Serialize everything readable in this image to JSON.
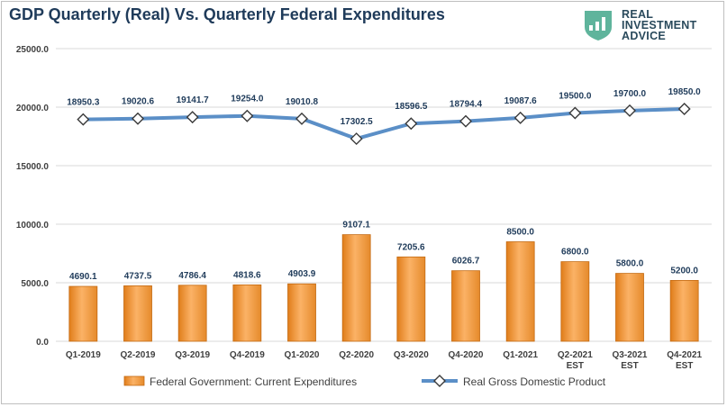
{
  "title": "GDP Quarterly (Real) Vs. Quarterly Federal Expenditures",
  "logo": {
    "line1": "REAL",
    "line2": "INVESTMENT",
    "line3": "ADVICE",
    "icon": "trend-up-badge-icon",
    "color": "#5fb49c"
  },
  "chart_data": {
    "type": "bar",
    "categories": [
      [
        "Q1-2019"
      ],
      [
        "Q2-2019"
      ],
      [
        "Q3-2019"
      ],
      [
        "Q4-2019"
      ],
      [
        "Q1-2020"
      ],
      [
        "Q2-2020"
      ],
      [
        "Q3-2020"
      ],
      [
        "Q4-2020"
      ],
      [
        "Q1-2021"
      ],
      [
        "Q2-2021",
        "EST"
      ],
      [
        "Q3-2021",
        "EST"
      ],
      [
        "Q4-2021",
        "EST"
      ]
    ],
    "ylim": [
      0,
      25000
    ],
    "yticks": [
      "0.0",
      "5000.0",
      "10000.0",
      "15000.0",
      "20000.0",
      "25000.0"
    ],
    "ytick_values": [
      0,
      5000,
      10000,
      15000,
      20000,
      25000
    ],
    "grid": true,
    "legend_position": "bottom",
    "series": [
      {
        "name": "Federal Government: Current Expenditures",
        "type": "bar",
        "color": "#f29b38",
        "values": [
          4690.1,
          4737.5,
          4786.4,
          4818.6,
          4903.9,
          9107.1,
          7205.6,
          6026.7,
          8500.0,
          6800.0,
          5800.0,
          5200.0
        ],
        "labels": [
          "4690.1",
          "4737.5",
          "4786.4",
          "4818.6",
          "4903.9",
          "9107.1",
          "7205.6",
          "6026.7",
          "8500.0",
          "6800.0",
          "5800.0",
          "5200.0"
        ]
      },
      {
        "name": "Real Gross Domestic Product",
        "type": "line",
        "color": "#5b8fc7",
        "marker": "diamond",
        "values": [
          18950.3,
          19020.6,
          19141.7,
          19254.0,
          19010.8,
          17302.5,
          18596.5,
          18794.4,
          19087.6,
          19500.0,
          19700.0,
          19850.0
        ],
        "labels": [
          "18950.3",
          "19020.6",
          "19141.7",
          "19254.0",
          "19010.8",
          "17302.5",
          "18596.5",
          "18794.4",
          "19087.6",
          "19500.0",
          "19700.0",
          "19850.0"
        ]
      }
    ]
  }
}
